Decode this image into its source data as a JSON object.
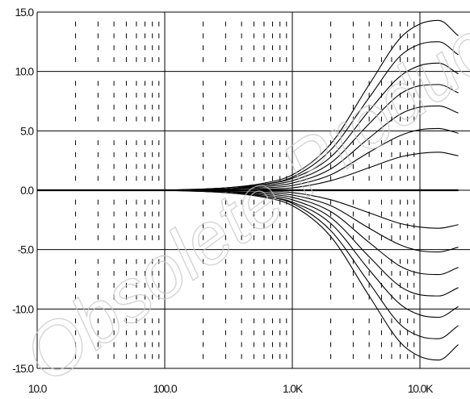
{
  "chart_data": {
    "type": "line",
    "title": "",
    "xlabel": "",
    "ylabel": "",
    "x_scale": "log",
    "xlim": [
      10,
      20000
    ],
    "ylim": [
      -15,
      15
    ],
    "x_ticks": [
      {
        "value": 10,
        "label": "10.0"
      },
      {
        "value": 100,
        "label": "100.0"
      },
      {
        "value": 1000,
        "label": "1.0K"
      },
      {
        "value": 10000,
        "label": "10.0K"
      }
    ],
    "y_ticks": [
      {
        "value": 15,
        "label": "15.0"
      },
      {
        "value": 10,
        "label": "10.0"
      },
      {
        "value": 5,
        "label": "5.0"
      },
      {
        "value": 0,
        "label": "0.0"
      },
      {
        "value": -5,
        "label": "-5.0"
      },
      {
        "value": -10,
        "label": "-10.0"
      },
      {
        "value": -15,
        "label": "-15.0"
      }
    ],
    "grid": true,
    "x_points": [
      100,
      300,
      600,
      1000,
      2000,
      4000,
      7000,
      10000,
      14000,
      20000
    ],
    "series": [
      {
        "values": [
          0,
          0.2,
          0.6,
          1.3,
          3.9,
          8.9,
          12.8,
          14.0,
          14.3,
          13.0
        ]
      },
      {
        "values": [
          0,
          0.2,
          0.5,
          1.1,
          3.4,
          7.8,
          11.3,
          12.3,
          12.5,
          11.4
        ]
      },
      {
        "values": [
          0,
          0.1,
          0.5,
          1.0,
          2.8,
          6.7,
          9.6,
          10.5,
          10.7,
          9.8
        ]
      },
      {
        "values": [
          0,
          0.1,
          0.4,
          0.8,
          2.3,
          5.6,
          8.1,
          8.8,
          8.9,
          8.2
        ]
      },
      {
        "values": [
          0,
          0.1,
          0.3,
          0.6,
          1.8,
          4.4,
          6.4,
          7.0,
          7.1,
          6.5
        ]
      },
      {
        "values": [
          0,
          0.1,
          0.2,
          0.4,
          1.3,
          3.2,
          4.6,
          5.1,
          5.2,
          4.8
        ]
      },
      {
        "values": [
          0,
          0.0,
          0.1,
          0.2,
          0.8,
          1.9,
          2.8,
          3.1,
          3.2,
          2.9
        ]
      },
      {
        "values": [
          0,
          0.0,
          0.0,
          0.0,
          0.0,
          0.0,
          0.0,
          0.0,
          0.0,
          0.0
        ]
      },
      {
        "values": [
          0,
          0.0,
          -0.1,
          -0.2,
          -0.8,
          -1.9,
          -2.8,
          -3.1,
          -3.2,
          -2.9
        ]
      },
      {
        "values": [
          0,
          -0.1,
          -0.2,
          -0.4,
          -1.3,
          -3.2,
          -4.6,
          -5.1,
          -5.2,
          -4.8
        ]
      },
      {
        "values": [
          0,
          -0.1,
          -0.3,
          -0.6,
          -1.8,
          -4.4,
          -6.4,
          -7.0,
          -7.1,
          -6.5
        ]
      },
      {
        "values": [
          0,
          -0.1,
          -0.4,
          -0.8,
          -2.3,
          -5.6,
          -8.1,
          -8.8,
          -8.9,
          -8.2
        ]
      },
      {
        "values": [
          0,
          -0.1,
          -0.5,
          -1.0,
          -2.8,
          -6.7,
          -9.6,
          -10.5,
          -10.7,
          -9.8
        ]
      },
      {
        "values": [
          0,
          -0.2,
          -0.5,
          -1.1,
          -3.4,
          -7.8,
          -11.3,
          -12.3,
          -12.5,
          -11.4
        ]
      },
      {
        "values": [
          0,
          -0.2,
          -0.6,
          -1.3,
          -3.9,
          -8.9,
          -12.8,
          -14.0,
          -14.3,
          -13.0
        ]
      }
    ],
    "colors": {
      "curve": "#000000",
      "grid": "#000000",
      "background": "#ffffff"
    }
  },
  "watermark": {
    "text": "Obsolete Product(s) -"
  }
}
